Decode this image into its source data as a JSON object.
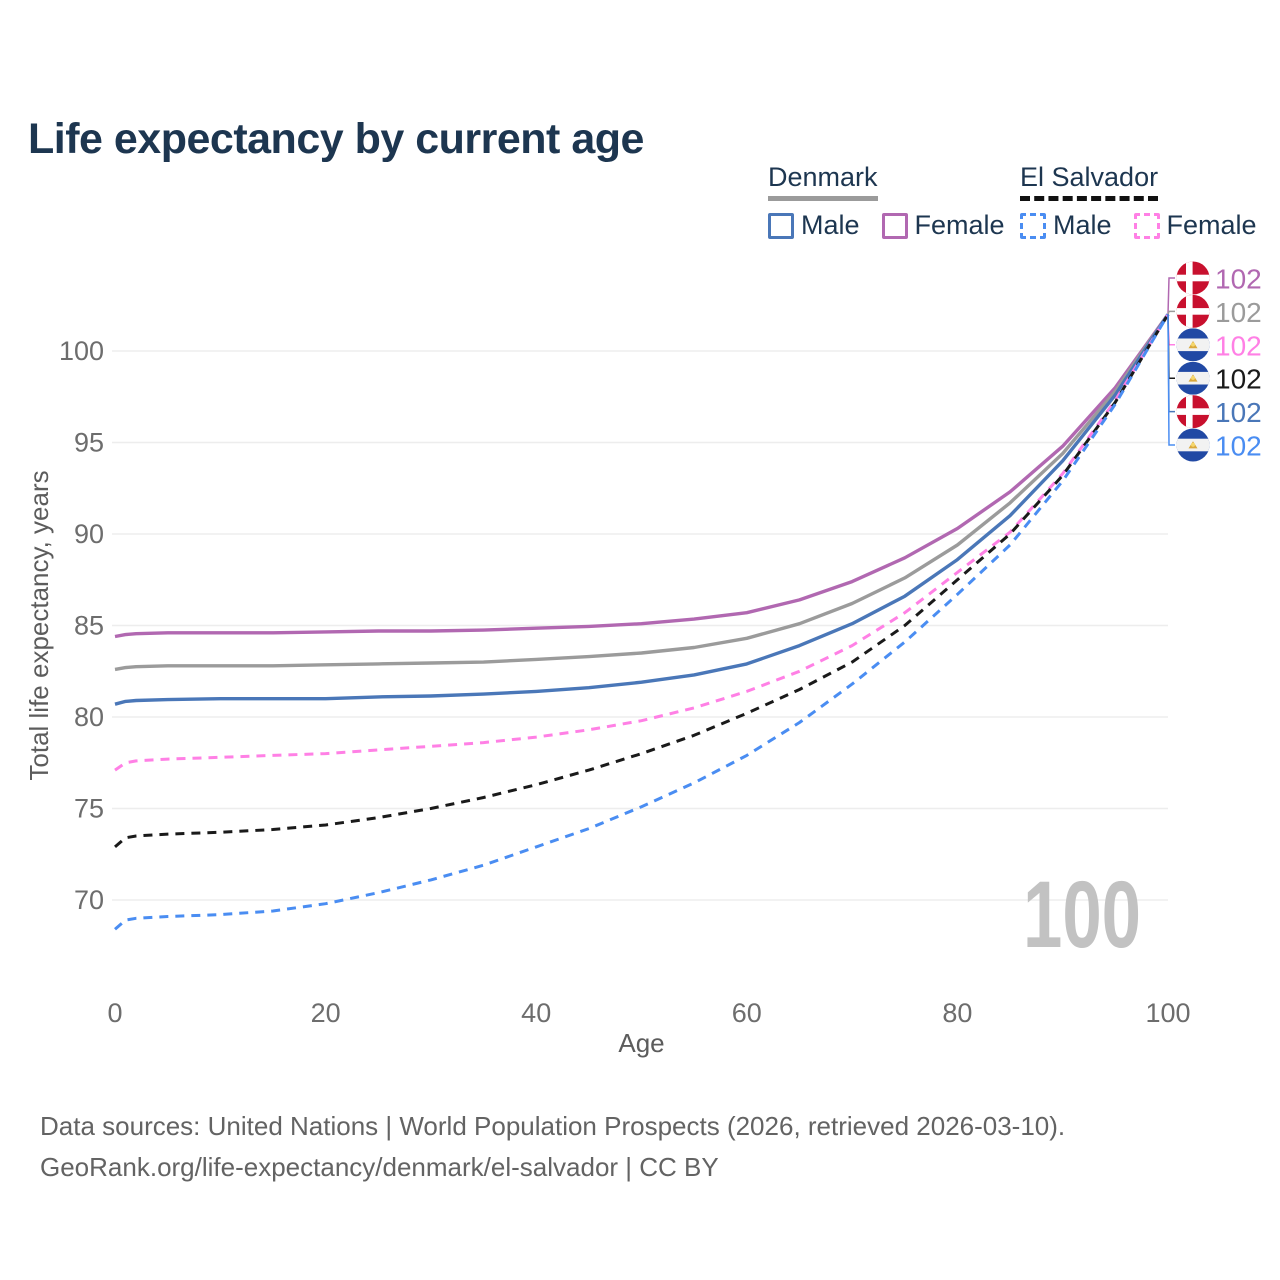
{
  "title": "Life expectancy by current age",
  "legend": {
    "groups": [
      {
        "country": "Denmark",
        "line_style": "solid",
        "underline_color": "#9b9b9b",
        "items": [
          {
            "label": "Male",
            "color": "#4a77b8",
            "dash": false
          },
          {
            "label": "Female",
            "color": "#b168b1",
            "dash": false
          }
        ]
      },
      {
        "country": "El Salvador",
        "line_style": "dashed",
        "underline_color": "#111111",
        "items": [
          {
            "label": "Male",
            "color": "#4a8df2",
            "dash": true
          },
          {
            "label": "Female",
            "color": "#ff80e5",
            "dash": true
          }
        ]
      }
    ]
  },
  "chart_data": {
    "type": "line",
    "title": "Life expectancy by current age",
    "xlabel": "Age",
    "ylabel": "Total life expectancy, years",
    "xlim": [
      0,
      100
    ],
    "ylim": [
      66.5,
      103
    ],
    "xticks": [
      0,
      20,
      40,
      60,
      80,
      100
    ],
    "yticks": [
      70,
      75,
      80,
      85,
      90,
      95,
      100
    ],
    "grid": true,
    "legend_position": "top-right",
    "watermark": "100",
    "x": [
      0,
      1,
      2,
      5,
      10,
      15,
      20,
      25,
      30,
      35,
      40,
      45,
      50,
      55,
      60,
      65,
      70,
      75,
      80,
      85,
      90,
      95,
      100
    ],
    "series": [
      {
        "name": "Denmark Female",
        "color": "#b168b1",
        "dash": false,
        "values": [
          84.4,
          84.5,
          84.55,
          84.6,
          84.6,
          84.6,
          84.65,
          84.7,
          84.7,
          84.75,
          84.85,
          84.95,
          85.1,
          85.35,
          85.7,
          86.4,
          87.4,
          88.7,
          90.3,
          92.3,
          94.8,
          98.0,
          102
        ]
      },
      {
        "name": "Denmark Both sexes",
        "color": "#9b9b9b",
        "dash": false,
        "values": [
          82.6,
          82.7,
          82.75,
          82.8,
          82.8,
          82.8,
          82.85,
          82.9,
          82.95,
          83.0,
          83.15,
          83.3,
          83.5,
          83.8,
          84.3,
          85.1,
          86.2,
          87.6,
          89.4,
          91.7,
          94.4,
          97.8,
          102
        ]
      },
      {
        "name": "Denmark Male",
        "color": "#4a77b8",
        "dash": false,
        "values": [
          80.7,
          80.85,
          80.9,
          80.95,
          81.0,
          81.0,
          81.0,
          81.1,
          81.15,
          81.25,
          81.4,
          81.6,
          81.9,
          82.3,
          82.9,
          83.9,
          85.1,
          86.6,
          88.6,
          91.0,
          94.0,
          97.6,
          102
        ]
      },
      {
        "name": "El Salvador Female",
        "color": "#ff80e5",
        "dash": true,
        "values": [
          77.1,
          77.5,
          77.6,
          77.7,
          77.8,
          77.9,
          78.0,
          78.2,
          78.4,
          78.6,
          78.9,
          79.3,
          79.8,
          80.5,
          81.4,
          82.5,
          83.9,
          85.7,
          87.9,
          90.1,
          93.3,
          97.3,
          102
        ]
      },
      {
        "name": "El Salvador Both sexes",
        "color": "#1a1a1a",
        "dash": true,
        "values": [
          72.9,
          73.4,
          73.5,
          73.6,
          73.7,
          73.85,
          74.1,
          74.5,
          75.0,
          75.6,
          76.3,
          77.1,
          78.0,
          79.0,
          80.2,
          81.5,
          83.0,
          85.0,
          87.5,
          90.0,
          93.2,
          97.2,
          102
        ]
      },
      {
        "name": "El Salvador Male",
        "color": "#4a8df2",
        "dash": true,
        "values": [
          68.4,
          68.9,
          69.0,
          69.1,
          69.2,
          69.4,
          69.8,
          70.4,
          71.1,
          71.9,
          72.9,
          73.9,
          75.1,
          76.4,
          77.9,
          79.7,
          81.8,
          84.1,
          86.7,
          89.4,
          92.9,
          97.1,
          102
        ]
      }
    ],
    "end_labels": [
      {
        "flag": "denmark",
        "value": "102",
        "color": "#b168b1",
        "series": "Denmark Female"
      },
      {
        "flag": "denmark",
        "value": "102",
        "color": "#9b9b9b",
        "series": "Denmark Both sexes"
      },
      {
        "flag": "el-salvador",
        "value": "102",
        "color": "#ff80e5",
        "series": "El Salvador Female"
      },
      {
        "flag": "el-salvador",
        "value": "102",
        "color": "#1a1a1a",
        "series": "El Salvador Both sexes"
      },
      {
        "flag": "denmark",
        "value": "102",
        "color": "#4a77b8",
        "series": "Denmark Male"
      },
      {
        "flag": "el-salvador",
        "value": "102",
        "color": "#4a8df2",
        "series": "El Salvador Male"
      }
    ]
  },
  "footer": {
    "line1": "Data sources: United Nations | World Population Prospects (2026, retrieved 2026-03-10).",
    "line2": "GeoRank.org/life-expectancy/denmark/el-salvador | CC BY"
  }
}
